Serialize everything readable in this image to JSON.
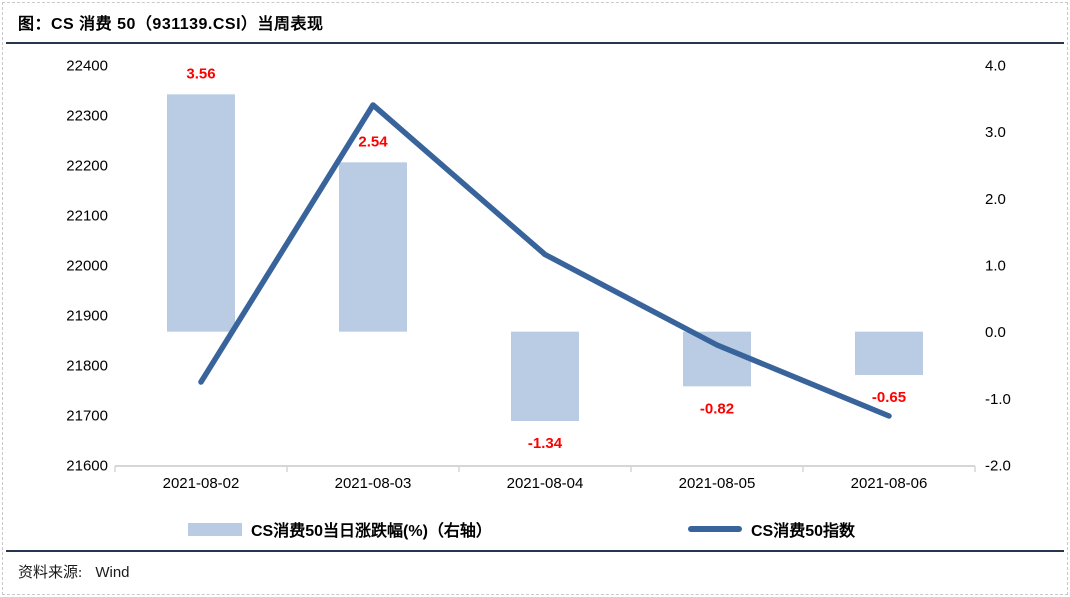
{
  "figure": {
    "title": "图：CS 消费 50（931139.CSI）当周表现"
  },
  "source": {
    "label": "资料来源:",
    "value": "Wind"
  },
  "colors": {
    "bar_fill": "#B9CCE4",
    "line_stroke": "#38649B",
    "data_label": "#FF0000",
    "axis_line": "#d6d6d6",
    "tick_text": "#000000",
    "rule": "#27364e"
  },
  "chart_data": {
    "type": "bar+line",
    "categories": [
      "2021-08-02",
      "2021-08-03",
      "2021-08-04",
      "2021-08-05",
      "2021-08-06"
    ],
    "series": [
      {
        "name": "CS消费50当日涨跌幅(%)（右轴）",
        "type": "bar",
        "axis": "right",
        "values": [
          3.56,
          2.54,
          -1.34,
          -0.82,
          -0.65
        ],
        "data_labels": [
          "3.56",
          "2.54",
          "-1.34",
          "-0.82",
          "-0.65"
        ],
        "color": "#B9CCE4"
      },
      {
        "name": "CS消费50指数",
        "type": "line",
        "axis": "left",
        "values": [
          21766,
          22320,
          22021,
          21840,
          21698
        ],
        "color": "#38649B"
      }
    ],
    "left_axis": {
      "min": 21600,
      "max": 22400,
      "tick_step": 100,
      "ticks": [
        "22400",
        "22300",
        "22200",
        "22100",
        "22000",
        "21900",
        "21800",
        "21700",
        "21600"
      ]
    },
    "right_axis": {
      "min": -2.0,
      "max": 4.0,
      "tick_step": 1.0,
      "ticks": [
        "4.0",
        "3.0",
        "2.0",
        "1.0",
        "0.0",
        "-1.0",
        "-2.0"
      ]
    },
    "grid": false,
    "legend_position": "bottom",
    "data_label_color": "#FF0000"
  }
}
